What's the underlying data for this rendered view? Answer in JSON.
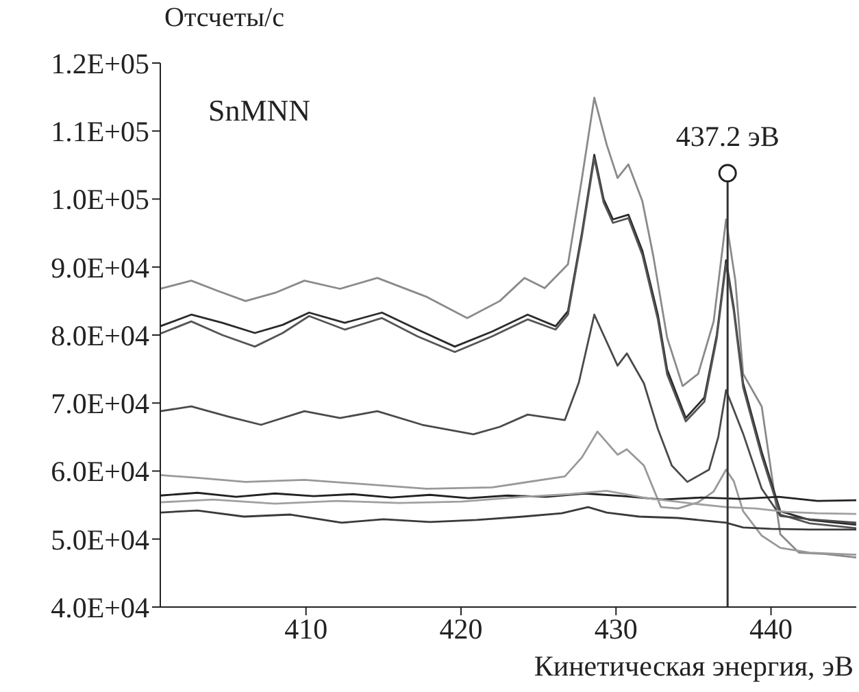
{
  "chart_data": {
    "type": "line",
    "xlabel": "Кинетическая энергия, эВ",
    "ylabel": "Отсчеты/с",
    "annotations": [
      "SnMNN",
      {
        "text": "437.2 эВ",
        "x": 437.2,
        "y": 103800
      }
    ],
    "ref_lines": [
      {
        "axis": "x",
        "value": 437.2,
        "color": "#333333"
      }
    ],
    "xlim": [
      400.6,
      445.5
    ],
    "xticks": [
      410,
      420,
      430,
      440
    ],
    "ylim": [
      40000,
      120000
    ],
    "yticks": [
      {
        "value": 40000,
        "label": "4.0E+04"
      },
      {
        "value": 50000,
        "label": "5.0E+04"
      },
      {
        "value": 60000,
        "label": "6.0E+04"
      },
      {
        "value": 70000,
        "label": "7.0E+04"
      },
      {
        "value": 80000,
        "label": "8.0E+04"
      },
      {
        "value": 90000,
        "label": "9.0E+04"
      },
      {
        "value": 100000,
        "label": "1.0E+05"
      },
      {
        "value": 110000,
        "label": "1.1E+05"
      },
      {
        "value": 120000,
        "label": "1.2E+05"
      }
    ],
    "series": [
      {
        "color": "#8a8a8a",
        "x": [
          400.6,
          402.6,
          404.3,
          406.1,
          408.0,
          409.9,
          412.2,
          414.6,
          417.8,
          420.4,
          422.5,
          424.1,
          425.4,
          426.9,
          427.8,
          428.6,
          429.4,
          430.1,
          430.8,
          431.7,
          432.4,
          433.3,
          434.3,
          435.3,
          436.3,
          437.1,
          437.7,
          438.2,
          439.4,
          440.6,
          441.8,
          443.5,
          445.5
        ],
        "values": [
          86800,
          88000,
          86500,
          85000,
          86200,
          88000,
          86800,
          88400,
          85600,
          82500,
          85000,
          88400,
          86900,
          90400,
          103000,
          114900,
          108000,
          103100,
          105100,
          99700,
          91700,
          79600,
          72500,
          74300,
          82000,
          97000,
          88000,
          74300,
          69500,
          50700,
          48000,
          47800,
          47300
        ]
      },
      {
        "color": "#2a2a2a",
        "x": [
          400.6,
          402.6,
          404.6,
          406.7,
          408.5,
          410.2,
          412.5,
          414.9,
          417.2,
          419.6,
          422.0,
          424.3,
          426.1,
          426.9,
          427.8,
          428.6,
          429.2,
          429.8,
          430.8,
          431.7,
          432.7,
          433.3,
          434.5,
          435.7,
          436.5,
          437.1,
          437.6,
          438.2,
          439.4,
          440.6,
          442.5,
          445.5
        ],
        "values": [
          81300,
          83000,
          81800,
          80300,
          81500,
          83300,
          81800,
          83300,
          80800,
          78300,
          80500,
          83000,
          81300,
          83500,
          95000,
          106500,
          100000,
          97000,
          97700,
          92400,
          83000,
          74900,
          67800,
          70800,
          80000,
          91000,
          84000,
          72900,
          62800,
          54100,
          52800,
          52100
        ]
      },
      {
        "color": "#555555",
        "x": [
          400.6,
          402.6,
          404.6,
          406.7,
          408.5,
          410.2,
          412.5,
          414.9,
          417.2,
          419.6,
          422.0,
          424.3,
          426.1,
          426.9,
          427.8,
          428.6,
          429.2,
          429.8,
          430.8,
          431.7,
          432.7,
          433.3,
          434.5,
          435.7,
          436.5,
          437.1,
          437.6,
          438.2,
          439.4,
          440.6,
          442.5,
          445.5
        ],
        "values": [
          80200,
          82000,
          80000,
          78300,
          80300,
          82800,
          80800,
          82500,
          79800,
          77500,
          79800,
          82300,
          80800,
          83000,
          94500,
          106000,
          99500,
          96500,
          97200,
          91800,
          82300,
          74200,
          67300,
          70200,
          79500,
          90500,
          83500,
          72300,
          62200,
          53600,
          52300,
          51600
        ]
      },
      {
        "color": "#4a4a4a",
        "x": [
          400.6,
          402.6,
          405.0,
          407.1,
          409.9,
          412.2,
          414.6,
          417.5,
          420.8,
          422.5,
          424.3,
          426.7,
          427.6,
          428.6,
          429.3,
          430.1,
          430.7,
          431.8,
          432.7,
          433.6,
          434.6,
          436.0,
          436.6,
          437.1,
          437.6,
          438.2,
          439.4,
          440.6,
          442.5,
          445.5
        ],
        "values": [
          68800,
          69500,
          68000,
          66800,
          68800,
          67800,
          68800,
          66800,
          65400,
          66500,
          68300,
          67500,
          73000,
          83000,
          79500,
          75500,
          77300,
          72900,
          66200,
          60800,
          58400,
          60200,
          65000,
          71900,
          69000,
          65500,
          57400,
          53400,
          52900,
          52400
        ]
      },
      {
        "color": "#999999",
        "x": [
          400.6,
          403.0,
          406.1,
          409.9,
          413.0,
          417.8,
          422.0,
          426.7,
          427.8,
          428.8,
          430.1,
          430.7,
          431.8,
          432.9,
          434.0,
          435.3,
          436.3,
          437.1,
          437.6,
          438.2,
          439.4,
          440.6,
          442.5,
          445.5
        ],
        "values": [
          59400,
          59000,
          58400,
          58700,
          58200,
          57400,
          57600,
          59200,
          62000,
          65800,
          62400,
          63200,
          60800,
          54700,
          54500,
          55400,
          57000,
          60200,
          58500,
          54100,
          50500,
          48700,
          48000,
          47700
        ]
      },
      {
        "color": "#222222",
        "x": [
          400.6,
          403.0,
          405.5,
          408.0,
          410.5,
          413.0,
          415.5,
          418.0,
          420.5,
          423.0,
          425.5,
          428.0,
          430.5,
          433.0,
          435.5,
          438.0,
          440.5,
          443.0,
          445.5
        ],
        "values": [
          56400,
          56800,
          56200,
          56700,
          56300,
          56600,
          56100,
          56500,
          56000,
          56400,
          56200,
          56700,
          56300,
          55800,
          56100,
          55900,
          56200,
          55600,
          55700
        ]
      },
      {
        "color": "#a0a0a0",
        "x": [
          400.6,
          404.0,
          408.0,
          412.0,
          416.0,
          420.0,
          424.0,
          427.0,
          429.4,
          432.0,
          435.0,
          437.1,
          439.0,
          441.0,
          443.0,
          445.5
        ],
        "values": [
          55400,
          55800,
          55200,
          55600,
          55300,
          55500,
          56200,
          56600,
          57100,
          56000,
          55200,
          54700,
          54500,
          54000,
          53800,
          53700
        ]
      },
      {
        "color": "#3a3a3a",
        "x": [
          400.6,
          403.0,
          406.0,
          409.0,
          412.3,
          415.0,
          418.0,
          421.0,
          424.0,
          426.5,
          428.2,
          429.4,
          431.5,
          434.0,
          437.1,
          438.2,
          440.0,
          442.5,
          445.5
        ],
        "values": [
          53900,
          54200,
          53300,
          53600,
          52400,
          52900,
          52500,
          52800,
          53300,
          53800,
          54700,
          53900,
          53300,
          53100,
          52400,
          51700,
          51500,
          51400,
          51400
        ]
      }
    ]
  }
}
